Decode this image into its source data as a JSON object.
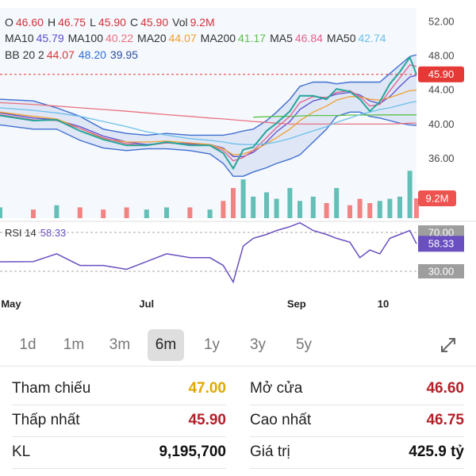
{
  "chart_data": {
    "type": "line",
    "quote": [
      {
        "label": "O",
        "value": "46.60"
      },
      {
        "label": "H",
        "value": "46.75"
      },
      {
        "label": "L",
        "value": "45.90"
      },
      {
        "label": "C",
        "value": "45.90"
      },
      {
        "label": "Vol",
        "value": "9.2M"
      }
    ],
    "x": [
      0,
      10,
      17,
      24,
      31,
      38,
      44,
      50,
      57,
      63,
      67,
      70,
      73,
      76,
      80,
      83,
      87,
      90,
      94,
      98,
      101,
      105,
      108,
      111,
      114,
      117,
      120,
      123,
      125
    ],
    "xlim": [
      0,
      125
    ],
    "xticks": [
      {
        "value": 3,
        "label": "May"
      },
      {
        "value": 44,
        "label": "Jul"
      },
      {
        "value": 89,
        "label": "Sep"
      },
      {
        "value": 115,
        "label": "10"
      }
    ],
    "ylim": [
      29.1,
      53.67
    ],
    "yticks": [
      {
        "value": 52,
        "label": "52.00"
      },
      {
        "value": 48,
        "label": "48.00"
      },
      {
        "value": 44,
        "label": "44.00"
      },
      {
        "value": 40,
        "label": "40.00"
      },
      {
        "value": 36,
        "label": "36.00"
      }
    ],
    "grid": false,
    "close": {
      "color": "#26a69a",
      "values": [
        41.1,
        40.5,
        40.6,
        39.3,
        38.3,
        37.6,
        37.6,
        38.0,
        37.6,
        37.6,
        36.7,
        34.9,
        37.1,
        37.4,
        39.3,
        40.2,
        41.6,
        43.4,
        43.4,
        43.0,
        44.2,
        43.9,
        43.0,
        41.6,
        42.7,
        44.8,
        46.2,
        47.9,
        45.9
      ]
    },
    "last_price": {
      "value": 45.9,
      "label": "45.90",
      "color": "#e53935"
    },
    "series": [
      {
        "name": "MA10",
        "legend_value": "45.79",
        "color": "#5b4fcf",
        "values": [
          41.4,
          40.8,
          40.6,
          39.8,
          38.7,
          38.0,
          37.7,
          37.9,
          37.8,
          37.7,
          37.3,
          36.3,
          36.3,
          36.8,
          38.0,
          39.2,
          40.4,
          41.8,
          42.8,
          43.2,
          43.6,
          43.8,
          43.5,
          42.8,
          42.5,
          43.3,
          44.5,
          45.6,
          45.79
        ]
      },
      {
        "name": "MA100",
        "legend_value": "40.22",
        "color": "#e8737f",
        "values": [
          42.6,
          42.4,
          42.2,
          42.0,
          41.8,
          41.6,
          41.4,
          41.2,
          41.0,
          40.8,
          40.7,
          40.6,
          40.5,
          40.4,
          40.3,
          40.2,
          40.1,
          40.1,
          40.1,
          40.1,
          40.1,
          40.1,
          40.1,
          40.1,
          40.1,
          40.1,
          40.15,
          40.2,
          40.22
        ]
      },
      {
        "name": "MA20",
        "legend_value": "44.07",
        "color": "#f0a030",
        "values": [
          41.5,
          41.0,
          40.7,
          39.6,
          38.4,
          38.0,
          38.0,
          38.1,
          37.9,
          37.7,
          37.2,
          36.5,
          36.6,
          37.0,
          37.8,
          38.5,
          39.5,
          40.5,
          41.5,
          42.2,
          42.9,
          43.3,
          43.3,
          43.0,
          42.9,
          43.2,
          43.6,
          44.0,
          44.07
        ]
      },
      {
        "name": "MA200",
        "legend_value": "41.17",
        "color": "#5cc24a",
        "values": [
          null,
          null,
          null,
          null,
          null,
          null,
          null,
          null,
          null,
          null,
          null,
          null,
          null,
          40.9,
          40.95,
          41.0,
          41.0,
          41.05,
          41.1,
          41.1,
          41.1,
          41.15,
          41.15,
          41.15,
          41.17,
          41.17,
          41.17,
          41.17,
          41.17
        ]
      },
      {
        "name": "MA5",
        "legend_value": "46.84",
        "color": "#e0608a",
        "values": [
          41.2,
          40.6,
          40.5,
          39.6,
          38.5,
          37.8,
          37.6,
          37.9,
          37.7,
          37.6,
          37.0,
          35.8,
          36.2,
          37.0,
          38.5,
          39.7,
          41.0,
          42.6,
          43.3,
          43.2,
          43.8,
          44.0,
          43.3,
          42.2,
          42.4,
          44.0,
          45.5,
          47.0,
          46.84
        ]
      },
      {
        "name": "MA50",
        "legend_value": "42.74",
        "color": "#6cc0ea",
        "values": [
          42.0,
          41.7,
          41.4,
          41.0,
          40.4,
          39.8,
          39.2,
          38.8,
          38.4,
          38.2,
          38.0,
          37.8,
          37.7,
          37.7,
          37.8,
          38.0,
          38.4,
          38.8,
          39.3,
          39.8,
          40.3,
          40.8,
          41.2,
          41.5,
          41.8,
          42.0,
          42.3,
          42.6,
          42.74
        ]
      }
    ],
    "bb": {
      "label": "BB 20 2",
      "legend_values": [
        {
          "value": "44.07",
          "color": "#d23a3a"
        },
        {
          "value": "48.20",
          "color": "#2f6fd6"
        },
        {
          "value": "39.95",
          "color": "#2b4fa0"
        }
      ],
      "color": "#3f6fd0",
      "upper": [
        43,
        42.8,
        42,
        41,
        39.5,
        39,
        38.8,
        39,
        38.8,
        38.8,
        38.8,
        39,
        39.3,
        39.5,
        40.5,
        41.5,
        43,
        44.5,
        45,
        45,
        44.8,
        45,
        45,
        45,
        45,
        46,
        47,
        48,
        48.2
      ],
      "lower": [
        40,
        39.5,
        39.5,
        38.2,
        37.3,
        37,
        37.2,
        37.2,
        37,
        36.6,
        35.5,
        34,
        34,
        34.5,
        35,
        35.5,
        36,
        36.5,
        38,
        39.5,
        41,
        41.5,
        41.5,
        41,
        40.8,
        40.5,
        40.2,
        40,
        39.95
      ]
    },
    "volume": {
      "ylim": [
        0,
        35
      ],
      "values": [
        5,
        4,
        6,
        5,
        4,
        5,
        4,
        5,
        5,
        4,
        8,
        14,
        18,
        10,
        12,
        9,
        14,
        8,
        10,
        7,
        14,
        6,
        9,
        7,
        8,
        9,
        10,
        22,
        9.2
      ],
      "up_color": "#26a69a",
      "down_color": "#ef5350",
      "last": {
        "value": 9.2,
        "label": "9.2M"
      }
    },
    "rsi": {
      "label": "RSI 14",
      "color": "#6a4fc0",
      "ylim": [
        11.2,
        79
      ],
      "values": [
        39.8,
        40,
        48,
        36,
        36,
        32,
        40,
        48,
        44,
        44,
        36,
        19,
        56,
        64,
        68,
        72,
        76,
        80,
        72,
        68,
        64,
        60,
        44,
        52,
        48,
        64,
        68,
        72,
        58.33
      ],
      "yticks": [
        {
          "value": 70,
          "label": "70.00"
        },
        {
          "value": 30,
          "label": "30.00"
        }
      ],
      "last": {
        "value": 58.33,
        "label": "58.33"
      }
    }
  },
  "controls": {
    "periods": [
      "1d",
      "1m",
      "3m",
      "6m",
      "1y",
      "3y",
      "5y"
    ],
    "selected": 3
  },
  "stats": [
    [
      {
        "label": "Tham chiếu",
        "value": "47.00",
        "color": "#e0a800"
      },
      {
        "label": "Mở cửa",
        "value": "46.60",
        "color": "#b3202a"
      }
    ],
    [
      {
        "label": "Thấp nhất",
        "value": "45.90",
        "color": "#b3202a"
      },
      {
        "label": "Cao nhất",
        "value": "46.75",
        "color": "#b3202a"
      }
    ],
    [
      {
        "label": "KL",
        "value": "9,195,700",
        "color": "#111111"
      },
      {
        "label": "Giá trị",
        "value": "425.9 tỷ",
        "color": "#111111"
      }
    ]
  ]
}
